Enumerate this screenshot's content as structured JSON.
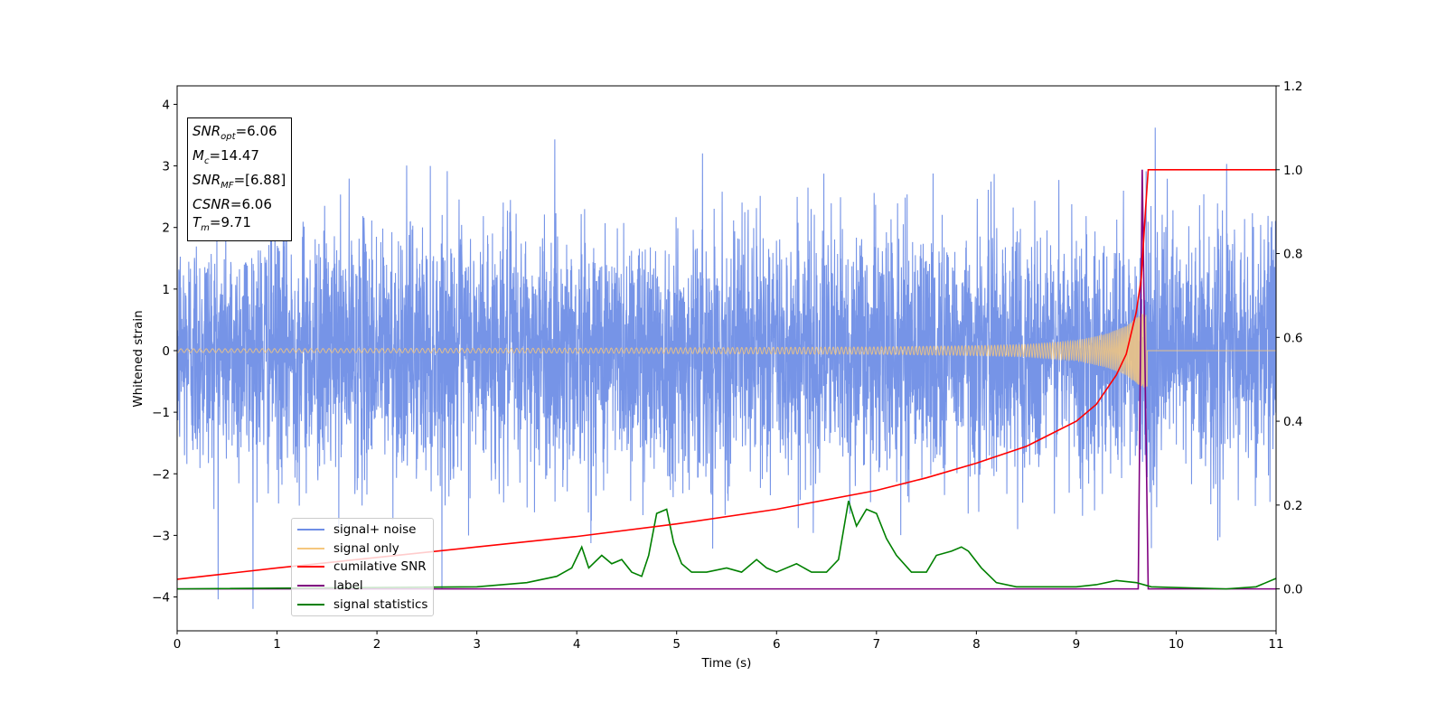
{
  "chart_data": {
    "type": "line",
    "xlabel": "Time (s)",
    "ylabel": "Whitened strain",
    "xlim": [
      0,
      11
    ],
    "ylim_left": [
      -4.55,
      4.3
    ],
    "ylim_right": [
      -0.1,
      1.2
    ],
    "x_ticks": [
      0,
      1,
      2,
      3,
      4,
      5,
      6,
      7,
      8,
      9,
      10,
      11
    ],
    "y_ticks_left": [
      -4,
      -3,
      -2,
      -1,
      0,
      1,
      2,
      3,
      4
    ],
    "y_ticks_right": [
      "0.0",
      "0.2",
      "0.4",
      "0.6",
      "0.8",
      "1.0",
      "1.2"
    ],
    "legend_position": "lower-left",
    "legend": [
      {
        "label": "signal+ noise",
        "color": "#6f8ee6"
      },
      {
        "label": "signal only",
        "color": "#f5c77e"
      },
      {
        "label": "cumilative SNR",
        "color": "#ff0000"
      },
      {
        "label": "label",
        "color": "#800080"
      },
      {
        "label": "signal statistics",
        "color": "#008000"
      }
    ],
    "annotation": {
      "snr_opt": "6.06",
      "mc": "14.47",
      "snr_mf": "[6.88]",
      "csnr": "6.06",
      "tm": "9.71"
    },
    "series": [
      {
        "name": "cumilative SNR",
        "axis": "right",
        "x": [
          0,
          1,
          2,
          3,
          4,
          5,
          6,
          7,
          7.5,
          8,
          8.5,
          9,
          9.2,
          9.4,
          9.5,
          9.6,
          9.65,
          9.7,
          9.72,
          11
        ],
        "values": [
          0.023,
          0.05,
          0.075,
          0.1,
          0.125,
          0.155,
          0.19,
          0.235,
          0.265,
          0.3,
          0.34,
          0.4,
          0.44,
          0.51,
          0.56,
          0.66,
          0.74,
          0.93,
          1.0,
          1.0
        ]
      },
      {
        "name": "label",
        "axis": "right",
        "x": [
          0,
          9.62,
          9.66,
          9.72,
          11
        ],
        "values": [
          0.0,
          0.0,
          1.0,
          0.0,
          0.0
        ]
      },
      {
        "name": "signal statistics",
        "axis": "right",
        "x": [
          0,
          3,
          3.5,
          3.8,
          3.95,
          4.05,
          4.12,
          4.25,
          4.35,
          4.45,
          4.55,
          4.65,
          4.72,
          4.8,
          4.9,
          4.97,
          5.05,
          5.15,
          5.3,
          5.5,
          5.65,
          5.8,
          5.9,
          6.0,
          6.2,
          6.35,
          6.5,
          6.62,
          6.72,
          6.8,
          6.9,
          7.0,
          7.1,
          7.2,
          7.35,
          7.5,
          7.6,
          7.75,
          7.85,
          7.92,
          8.05,
          8.2,
          8.4,
          9.0,
          9.2,
          9.4,
          9.6,
          9.75,
          10.5,
          10.8,
          11
        ],
        "values": [
          0.0,
          0.005,
          0.015,
          0.03,
          0.05,
          0.1,
          0.05,
          0.08,
          0.06,
          0.07,
          0.04,
          0.03,
          0.08,
          0.18,
          0.19,
          0.11,
          0.06,
          0.04,
          0.04,
          0.05,
          0.04,
          0.07,
          0.05,
          0.04,
          0.06,
          0.04,
          0.04,
          0.07,
          0.21,
          0.15,
          0.19,
          0.18,
          0.12,
          0.08,
          0.04,
          0.04,
          0.08,
          0.09,
          0.1,
          0.09,
          0.05,
          0.015,
          0.005,
          0.005,
          0.01,
          0.02,
          0.015,
          0.005,
          0.0,
          0.005,
          0.025
        ]
      },
      {
        "name": "signal+ noise",
        "axis": "left",
        "noise_std": 1.0,
        "x_range": [
          0,
          11
        ]
      },
      {
        "name": "signal only",
        "axis": "left",
        "envelope_x": [
          0,
          4,
          7,
          8,
          8.5,
          9,
          9.3,
          9.5,
          9.65,
          9.71
        ],
        "envelope_y": [
          0.03,
          0.04,
          0.06,
          0.08,
          0.1,
          0.16,
          0.27,
          0.4,
          0.6,
          0.6
        ]
      }
    ]
  }
}
